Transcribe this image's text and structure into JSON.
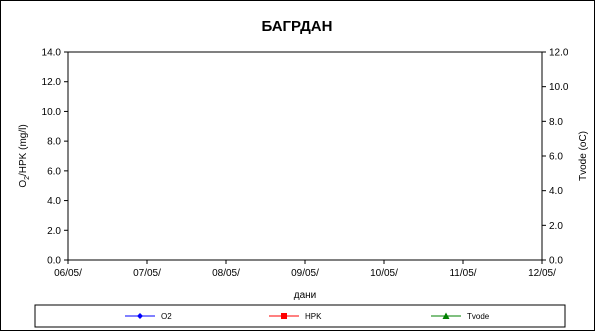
{
  "chart_data": {
    "type": "line",
    "title": "БАГРДАН",
    "xlabel": "дани",
    "ylabel": "O2/HPK (mg/l)",
    "y2label": "Tvode (oC)",
    "x_ticks": [
      "06/05/",
      "07/05/",
      "08/05/",
      "09/05/",
      "10/05/",
      "11/05/",
      "12/05/"
    ],
    "ylim": [
      0,
      14
    ],
    "y_ticks": [
      "0.0",
      "2.0",
      "4.0",
      "6.0",
      "8.0",
      "10.0",
      "12.0",
      "14.0"
    ],
    "y2lim": [
      0,
      12
    ],
    "y2_ticks": [
      "0.0",
      "2.0",
      "4.0",
      "6.0",
      "8.0",
      "10.0",
      "12.0"
    ],
    "grid": false,
    "legend_position": "bottom",
    "series": [
      {
        "name": "O2",
        "color": "#0000ff",
        "marker": "diamond",
        "axis": "left",
        "values": []
      },
      {
        "name": "HPK",
        "color": "#ff0000",
        "marker": "square",
        "axis": "left",
        "values": []
      },
      {
        "name": "Tvode",
        "color": "#008000",
        "marker": "triangle",
        "axis": "right",
        "values": []
      }
    ]
  }
}
